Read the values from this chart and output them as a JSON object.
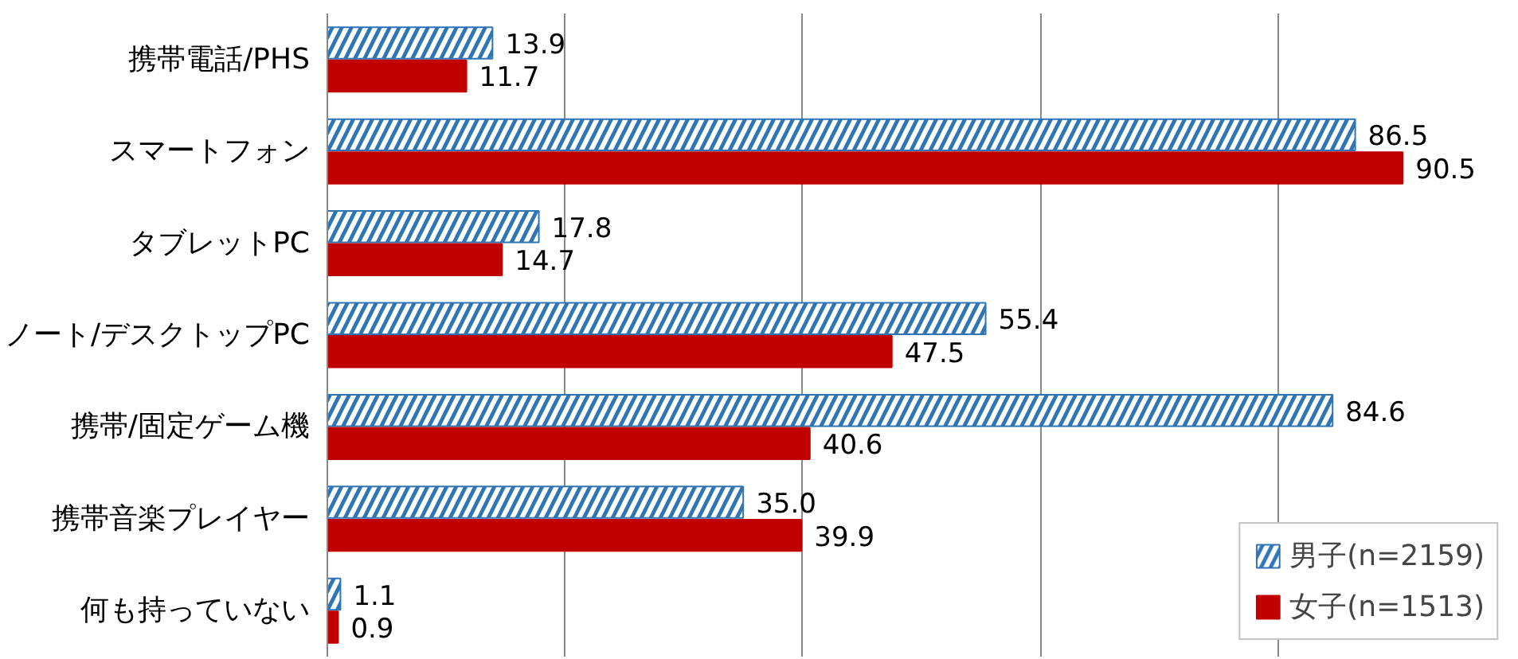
{
  "chart_data": {
    "type": "bar",
    "orientation": "horizontal",
    "categories": [
      "携帯電話/PHS",
      "スマートフォン",
      "タブレットPC",
      "ノート/デスクトップPC",
      "携帯/固定ゲーム機",
      "携帯音楽プレイヤー",
      "何も持っていない"
    ],
    "series": [
      {
        "name": "男子(n=2159)",
        "color": "#2e75b6",
        "values": [
          13.9,
          86.5,
          17.8,
          55.4,
          84.6,
          35.0,
          1.1
        ],
        "value_labels": [
          "13.9",
          "86.5",
          "17.8",
          "55.4",
          "84.6",
          "35.0",
          "1.1"
        ]
      },
      {
        "name": "女子(n=1513)",
        "color": "#c00000",
        "values": [
          11.7,
          90.5,
          14.7,
          47.5,
          40.6,
          39.9,
          0.9
        ],
        "value_labels": [
          "11.7",
          "90.5",
          "14.7",
          "47.5",
          "40.6",
          "39.9",
          "0.9"
        ]
      }
    ],
    "xticks": [
      {
        "value": 0,
        "label": null
      },
      {
        "value": 20,
        "label": null
      },
      {
        "value": 40,
        "label": null
      },
      {
        "value": 60,
        "label": null
      },
      {
        "value": 80,
        "label": null
      }
    ],
    "tick_labels": "y",
    "grid": "x",
    "legend": "bottom right"
  }
}
